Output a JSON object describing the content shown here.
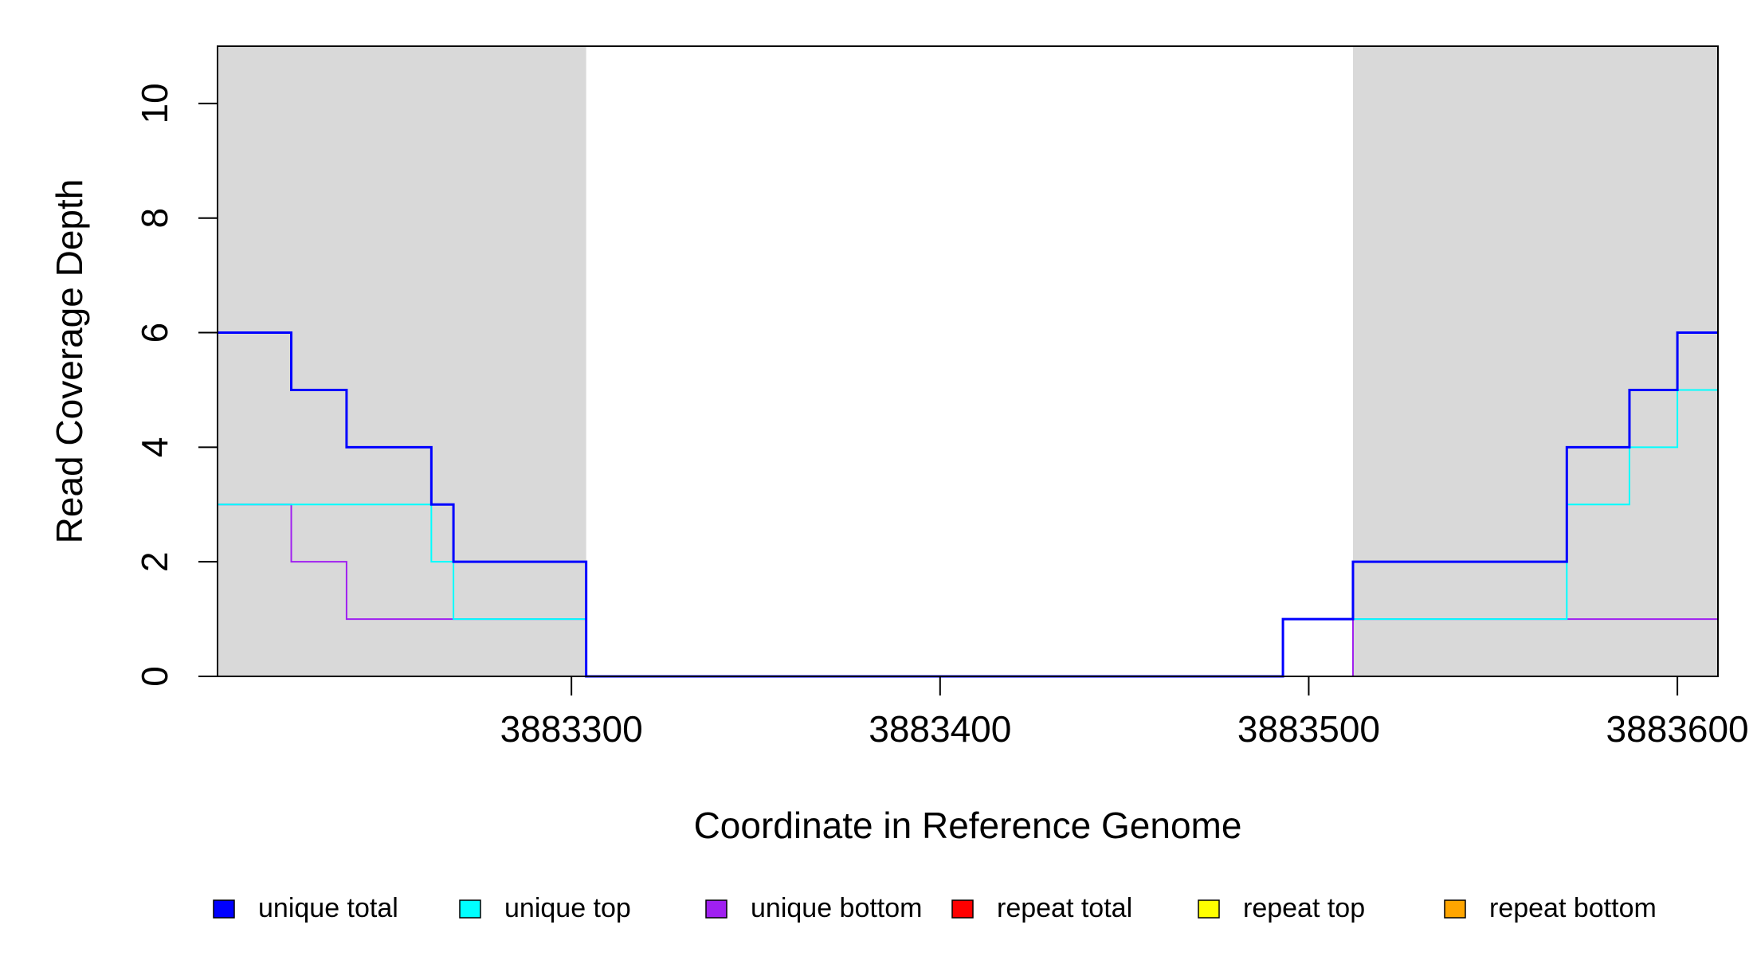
{
  "chart_data": {
    "type": "line",
    "step": true,
    "title": "",
    "xlabel": "Coordinate in Reference Genome",
    "ylabel": "Read Coverage Depth",
    "xlim": [
      3883204,
      3883611
    ],
    "ylim": [
      0,
      11
    ],
    "x_ticks": [
      3883300,
      3883400,
      3883500,
      3883600
    ],
    "y_ticks": [
      0,
      2,
      4,
      6,
      8,
      10
    ],
    "grid": false,
    "shaded_regions": [
      {
        "from": 3883204,
        "to": 3883304,
        "color": "#d9d9d9"
      },
      {
        "from": 3883512,
        "to": 3883611,
        "color": "#d9d9d9"
      }
    ],
    "series": [
      {
        "name": "unique total",
        "color": "#0000ff",
        "x": [
          3883204,
          3883224,
          3883239,
          3883262,
          3883268,
          3883304,
          3883493,
          3883512,
          3883570,
          3883587,
          3883600,
          3883611
        ],
        "values": [
          6,
          5,
          4,
          3,
          2,
          0,
          1,
          2,
          4,
          5,
          6,
          6
        ]
      },
      {
        "name": "unique top",
        "color": "#00ffff",
        "x": [
          3883204,
          3883224,
          3883262,
          3883268,
          3883304,
          3883493,
          3883512,
          3883570,
          3883587,
          3883600,
          3883611
        ],
        "values": [
          3,
          3,
          2,
          1,
          0,
          1,
          1,
          3,
          4,
          5,
          5
        ]
      },
      {
        "name": "unique bottom",
        "color": "#a020f0",
        "x": [
          3883204,
          3883224,
          3883239,
          3883304,
          3883493,
          3883512,
          3883611
        ],
        "values": [
          3,
          2,
          1,
          0,
          0,
          1,
          1
        ]
      },
      {
        "name": "repeat total",
        "color": "#ff0000",
        "x": [
          3883204,
          3883611
        ],
        "values": [
          0,
          0
        ]
      },
      {
        "name": "repeat top",
        "color": "#ffff00",
        "x": [
          3883204,
          3883611
        ],
        "values": [
          0,
          0
        ]
      },
      {
        "name": "repeat bottom",
        "color": "#ffa500",
        "x": [
          3883204,
          3883611
        ],
        "values": [
          0,
          0
        ]
      }
    ],
    "legend": {
      "position": "bottom",
      "orientation": "horizontal"
    }
  }
}
